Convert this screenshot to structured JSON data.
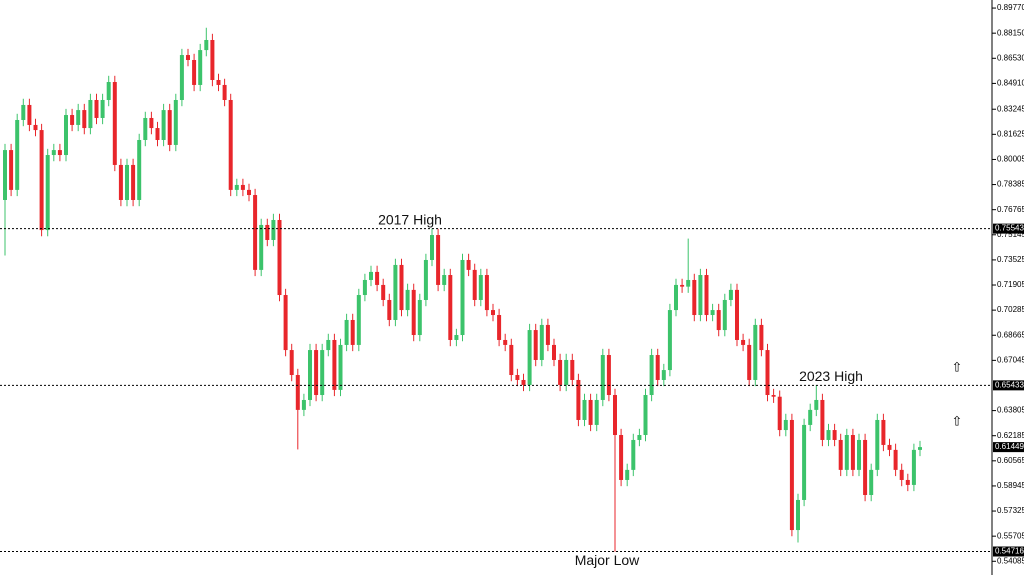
{
  "chart_data": {
    "type": "candlestick",
    "ylim": [
      0.532,
      0.9029
    ],
    "yticks": [
      {
        "value": 0.8977,
        "label": "0.89770"
      },
      {
        "value": 0.8815,
        "label": "0.88150"
      },
      {
        "value": 0.8653,
        "label": "0.86530"
      },
      {
        "value": 0.8491,
        "label": "0.84910"
      },
      {
        "value": 0.83245,
        "label": "0.83245"
      },
      {
        "value": 0.81625,
        "label": "0.81625"
      },
      {
        "value": 0.80005,
        "label": "0.80005"
      },
      {
        "value": 0.78385,
        "label": "0.78385"
      },
      {
        "value": 0.76765,
        "label": "0.76765"
      },
      {
        "value": 0.75145,
        "label": "0.75145"
      },
      {
        "value": 0.73525,
        "label": "0.73525"
      },
      {
        "value": 0.71905,
        "label": "0.71905"
      },
      {
        "value": 0.70285,
        "label": "0.70285"
      },
      {
        "value": 0.68665,
        "label": "0.68665"
      },
      {
        "value": 0.67045,
        "label": "0.67045"
      },
      {
        "value": 0.63805,
        "label": "0.63805"
      },
      {
        "value": 0.62185,
        "label": "0.62185"
      },
      {
        "value": 0.60565,
        "label": "0.60565"
      },
      {
        "value": 0.58945,
        "label": "0.58945"
      },
      {
        "value": 0.57325,
        "label": "0.57325"
      },
      {
        "value": 0.55705,
        "label": "0.55705"
      },
      {
        "value": 0.54085,
        "label": "0.54085"
      }
    ],
    "levels": [
      {
        "value": 0.75543,
        "label": "0.75543",
        "line": true
      },
      {
        "value": 0.65433,
        "label": "0.65433",
        "line": true
      },
      {
        "value": 0.61449,
        "label": "0.61449",
        "line": false
      },
      {
        "value": 0.54716,
        "label": "0.54716",
        "line": true
      }
    ],
    "annotations": [
      {
        "text": "2017 High",
        "value": 0.75543
      },
      {
        "text": "2023 High",
        "value": 0.65433
      },
      {
        "text": "Major Low",
        "value": 0.54716
      }
    ],
    "up_color": "#3cc36b",
    "down_color": "#e8262b",
    "ohlc": [
      [
        0.7739,
        0.8101,
        0.7381,
        0.8061
      ],
      [
        0.8061,
        0.8101,
        0.7764,
        0.7804
      ],
      [
        0.7804,
        0.8295,
        0.7764,
        0.8255
      ],
      [
        0.8255,
        0.8392,
        0.8215,
        0.8352
      ],
      [
        0.8352,
        0.8392,
        0.8183,
        0.8223
      ],
      [
        0.8223,
        0.8263,
        0.815,
        0.819
      ],
      [
        0.819,
        0.823,
        0.7505,
        0.7545
      ],
      [
        0.7545,
        0.8069,
        0.7505,
        0.8029
      ],
      [
        0.8029,
        0.8101,
        0.7989,
        0.8061
      ],
      [
        0.8061,
        0.8101,
        0.7989,
        0.8029
      ],
      [
        0.8029,
        0.8327,
        0.7989,
        0.8287
      ],
      [
        0.8287,
        0.8327,
        0.8183,
        0.8223
      ],
      [
        0.8223,
        0.8359,
        0.8183,
        0.8319
      ],
      [
        0.8319,
        0.8359,
        0.8163,
        0.8203
      ],
      [
        0.8203,
        0.8424,
        0.8163,
        0.8384
      ],
      [
        0.8384,
        0.8424,
        0.8228,
        0.8268
      ],
      [
        0.8268,
        0.8424,
        0.8228,
        0.8384
      ],
      [
        0.8384,
        0.854,
        0.8344,
        0.85
      ],
      [
        0.85,
        0.854,
        0.7925,
        0.7965
      ],
      [
        0.7965,
        0.8005,
        0.7699,
        0.7739
      ],
      [
        0.7739,
        0.8005,
        0.7699,
        0.7965
      ],
      [
        0.7965,
        0.8005,
        0.7699,
        0.7739
      ],
      [
        0.7739,
        0.8166,
        0.7699,
        0.8126
      ],
      [
        0.8126,
        0.8308,
        0.8086,
        0.8268
      ],
      [
        0.8268,
        0.8308,
        0.8163,
        0.8203
      ],
      [
        0.8203,
        0.8243,
        0.8086,
        0.8126
      ],
      [
        0.8126,
        0.8359,
        0.8086,
        0.8319
      ],
      [
        0.8319,
        0.8359,
        0.8054,
        0.8094
      ],
      [
        0.8094,
        0.8424,
        0.8054,
        0.8384
      ],
      [
        0.8384,
        0.8714,
        0.8344,
        0.8674
      ],
      [
        0.8674,
        0.8714,
        0.8602,
        0.8642
      ],
      [
        0.8642,
        0.8682,
        0.8441,
        0.8481
      ],
      [
        0.8481,
        0.8746,
        0.8441,
        0.8706
      ],
      [
        0.8706,
        0.885,
        0.8666,
        0.8771
      ],
      [
        0.8771,
        0.8811,
        0.8473,
        0.8513
      ],
      [
        0.8513,
        0.8553,
        0.8441,
        0.8481
      ],
      [
        0.8481,
        0.8521,
        0.8344,
        0.8384
      ],
      [
        0.8384,
        0.8424,
        0.7764,
        0.7804
      ],
      [
        0.7804,
        0.7876,
        0.7764,
        0.7836
      ],
      [
        0.7836,
        0.7876,
        0.7764,
        0.7804
      ],
      [
        0.7804,
        0.7844,
        0.7731,
        0.7771
      ],
      [
        0.7771,
        0.7811,
        0.7248,
        0.7288
      ],
      [
        0.7288,
        0.7618,
        0.7248,
        0.7578
      ],
      [
        0.7578,
        0.7618,
        0.7441,
        0.7481
      ],
      [
        0.7481,
        0.765,
        0.7441,
        0.761
      ],
      [
        0.761,
        0.765,
        0.7086,
        0.7126
      ],
      [
        0.7126,
        0.7166,
        0.6731,
        0.6771
      ],
      [
        0.6771,
        0.6811,
        0.657,
        0.661
      ],
      [
        0.661,
        0.665,
        0.613,
        0.6385
      ],
      [
        0.6385,
        0.6489,
        0.6345,
        0.6449
      ],
      [
        0.6449,
        0.6811,
        0.6409,
        0.6771
      ],
      [
        0.6771,
        0.6811,
        0.6441,
        0.6481
      ],
      [
        0.6481,
        0.6811,
        0.6441,
        0.6771
      ],
      [
        0.6771,
        0.6876,
        0.6731,
        0.6836
      ],
      [
        0.6836,
        0.6876,
        0.6474,
        0.6514
      ],
      [
        0.6514,
        0.6844,
        0.6474,
        0.6804
      ],
      [
        0.6804,
        0.7005,
        0.6764,
        0.6965
      ],
      [
        0.6965,
        0.7005,
        0.6764,
        0.6804
      ],
      [
        0.6804,
        0.7166,
        0.6764,
        0.7126
      ],
      [
        0.7126,
        0.7263,
        0.7086,
        0.7223
      ],
      [
        0.7223,
        0.7315,
        0.7183,
        0.7275
      ],
      [
        0.7275,
        0.7315,
        0.7151,
        0.7191
      ],
      [
        0.7191,
        0.7231,
        0.7054,
        0.7094
      ],
      [
        0.7094,
        0.7134,
        0.6925,
        0.6965
      ],
      [
        0.6965,
        0.736,
        0.6925,
        0.732
      ],
      [
        0.732,
        0.736,
        0.6989,
        0.7029
      ],
      [
        0.7029,
        0.7199,
        0.6989,
        0.7159
      ],
      [
        0.7159,
        0.7199,
        0.6828,
        0.6868
      ],
      [
        0.6868,
        0.7134,
        0.6828,
        0.7094
      ],
      [
        0.7094,
        0.7392,
        0.7054,
        0.7352
      ],
      [
        0.7352,
        0.7555,
        0.7312,
        0.7513
      ],
      [
        0.7513,
        0.7553,
        0.7151,
        0.7191
      ],
      [
        0.7191,
        0.7295,
        0.7151,
        0.7255
      ],
      [
        0.7255,
        0.7295,
        0.6796,
        0.6836
      ],
      [
        0.6836,
        0.6908,
        0.6796,
        0.6868
      ],
      [
        0.6868,
        0.7392,
        0.6828,
        0.7352
      ],
      [
        0.7352,
        0.7392,
        0.7248,
        0.7288
      ],
      [
        0.7288,
        0.7328,
        0.7054,
        0.7094
      ],
      [
        0.7094,
        0.7295,
        0.7054,
        0.7255
      ],
      [
        0.7255,
        0.7295,
        0.6989,
        0.7029
      ],
      [
        0.7029,
        0.7069,
        0.6957,
        0.6997
      ],
      [
        0.6997,
        0.7037,
        0.6796,
        0.6836
      ],
      [
        0.6836,
        0.6876,
        0.6764,
        0.6804
      ],
      [
        0.6804,
        0.6844,
        0.657,
        0.661
      ],
      [
        0.661,
        0.665,
        0.6538,
        0.6578
      ],
      [
        0.6578,
        0.6618,
        0.6506,
        0.6546
      ],
      [
        0.6546,
        0.694,
        0.6506,
        0.69
      ],
      [
        0.69,
        0.694,
        0.6667,
        0.6707
      ],
      [
        0.6707,
        0.6973,
        0.6667,
        0.6933
      ],
      [
        0.6933,
        0.6973,
        0.6764,
        0.6804
      ],
      [
        0.6804,
        0.6844,
        0.6667,
        0.6707
      ],
      [
        0.6707,
        0.6747,
        0.6506,
        0.6546
      ],
      [
        0.6546,
        0.6747,
        0.6506,
        0.6707
      ],
      [
        0.6707,
        0.6747,
        0.6538,
        0.6578
      ],
      [
        0.6578,
        0.6618,
        0.628,
        0.632
      ],
      [
        0.632,
        0.6489,
        0.628,
        0.6449
      ],
      [
        0.6449,
        0.6489,
        0.6248,
        0.6288
      ],
      [
        0.6288,
        0.6489,
        0.6248,
        0.6449
      ],
      [
        0.6449,
        0.6779,
        0.6409,
        0.6739
      ],
      [
        0.6739,
        0.6779,
        0.6441,
        0.6481
      ],
      [
        0.6481,
        0.6521,
        0.547,
        0.6223
      ],
      [
        0.6223,
        0.6263,
        0.5893,
        0.5933
      ],
      [
        0.5933,
        0.6038,
        0.5893,
        0.5998
      ],
      [
        0.5998,
        0.6231,
        0.5958,
        0.6191
      ],
      [
        0.6191,
        0.6263,
        0.6151,
        0.6223
      ],
      [
        0.6223,
        0.6521,
        0.6183,
        0.6481
      ],
      [
        0.6481,
        0.6779,
        0.6441,
        0.6739
      ],
      [
        0.6739,
        0.6779,
        0.6538,
        0.6578
      ],
      [
        0.6578,
        0.6682,
        0.6538,
        0.6642
      ],
      [
        0.6642,
        0.7069,
        0.6602,
        0.7029
      ],
      [
        0.7029,
        0.7231,
        0.6989,
        0.7191
      ],
      [
        0.7191,
        0.7231,
        0.714,
        0.718
      ],
      [
        0.718,
        0.749,
        0.714,
        0.7223
      ],
      [
        0.7223,
        0.7263,
        0.6957,
        0.6997
      ],
      [
        0.6997,
        0.7295,
        0.6957,
        0.7255
      ],
      [
        0.7255,
        0.7295,
        0.6957,
        0.6997
      ],
      [
        0.6997,
        0.7069,
        0.6957,
        0.7029
      ],
      [
        0.7029,
        0.7069,
        0.686,
        0.69
      ],
      [
        0.69,
        0.7134,
        0.686,
        0.7094
      ],
      [
        0.7094,
        0.7199,
        0.7054,
        0.7159
      ],
      [
        0.7159,
        0.7199,
        0.6796,
        0.6836
      ],
      [
        0.6836,
        0.6876,
        0.6764,
        0.6804
      ],
      [
        0.6804,
        0.6844,
        0.6538,
        0.6578
      ],
      [
        0.6578,
        0.6973,
        0.6538,
        0.6933
      ],
      [
        0.6933,
        0.6973,
        0.6731,
        0.6771
      ],
      [
        0.6771,
        0.6811,
        0.6441,
        0.6481
      ],
      [
        0.6481,
        0.6521,
        0.643,
        0.647
      ],
      [
        0.647,
        0.651,
        0.6215,
        0.6255
      ],
      [
        0.6255,
        0.636,
        0.6215,
        0.632
      ],
      [
        0.632,
        0.636,
        0.557,
        0.561
      ],
      [
        0.561,
        0.5844,
        0.553,
        0.5804
      ],
      [
        0.5804,
        0.6328,
        0.5764,
        0.6288
      ],
      [
        0.6288,
        0.6425,
        0.6248,
        0.6385
      ],
      [
        0.6385,
        0.6545,
        0.6345,
        0.6449
      ],
      [
        0.6449,
        0.6489,
        0.6151,
        0.6191
      ],
      [
        0.6191,
        0.6295,
        0.6151,
        0.6255
      ],
      [
        0.6255,
        0.6295,
        0.6151,
        0.6191
      ],
      [
        0.6191,
        0.6231,
        0.5958,
        0.5998
      ],
      [
        0.5998,
        0.6263,
        0.5958,
        0.6223
      ],
      [
        0.6223,
        0.6263,
        0.5958,
        0.5998
      ],
      [
        0.5998,
        0.6231,
        0.5958,
        0.6191
      ],
      [
        0.6191,
        0.6231,
        0.5796,
        0.5836
      ],
      [
        0.5836,
        0.6038,
        0.5796,
        0.5998
      ],
      [
        0.5998,
        0.636,
        0.5958,
        0.632
      ],
      [
        0.632,
        0.636,
        0.6119,
        0.6159
      ],
      [
        0.6159,
        0.6199,
        0.6087,
        0.6127
      ],
      [
        0.6127,
        0.6167,
        0.5958,
        0.5998
      ],
      [
        0.5998,
        0.6038,
        0.5893,
        0.5933
      ],
      [
        0.5933,
        0.5973,
        0.5861,
        0.5901
      ],
      [
        0.5901,
        0.6167,
        0.5861,
        0.6127
      ],
      [
        0.6127,
        0.6185,
        0.6087,
        0.6145
      ]
    ]
  }
}
